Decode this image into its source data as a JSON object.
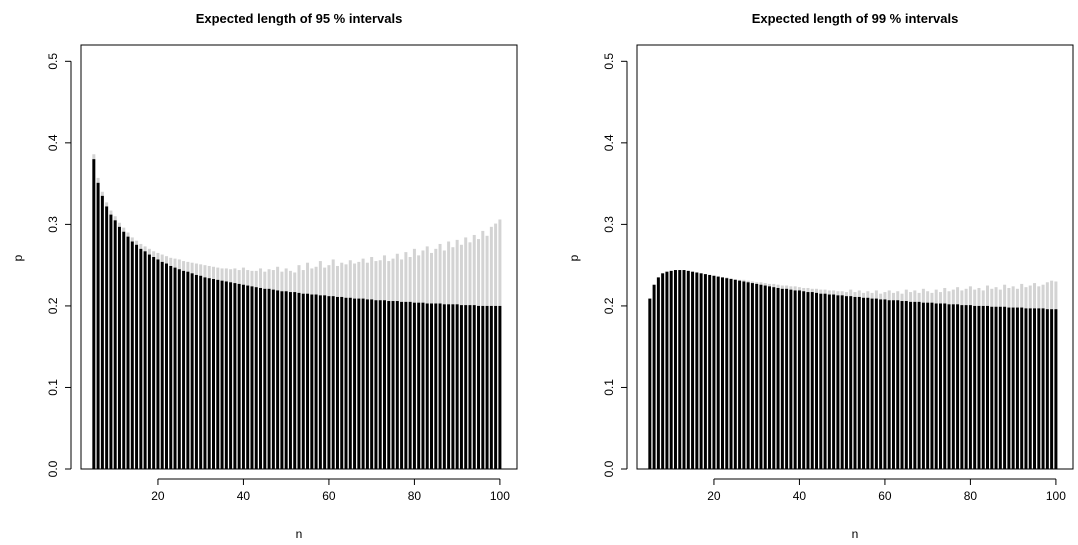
{
  "colors": {
    "bar": "#000000",
    "upper": "#d3d3d3"
  },
  "chart_data": [
    {
      "type": "bar",
      "title": "Expected length of 95 % intervals",
      "xlabel": "n",
      "ylabel": "p",
      "xlim": [
        2,
        104
      ],
      "ylim": [
        0,
        0.52
      ],
      "xticks": [
        20,
        40,
        60,
        80,
        100
      ],
      "yticks": [
        0.0,
        0.1,
        0.2,
        0.3,
        0.4,
        0.5
      ],
      "ytick_labels": [
        "0.0",
        "0.1",
        "0.2",
        "0.3",
        "0.4",
        "0.5"
      ],
      "grid": false,
      "series": [
        {
          "x": [
            5,
            6,
            7,
            8,
            9,
            10,
            11,
            12,
            13,
            14,
            15,
            16,
            17,
            18,
            19,
            20,
            21,
            22,
            23,
            24,
            25,
            26,
            27,
            28,
            29,
            30,
            31,
            32,
            33,
            34,
            35,
            36,
            37,
            38,
            39,
            40,
            41,
            42,
            43,
            44,
            45,
            46,
            47,
            48,
            49,
            50,
            51,
            52,
            53,
            54,
            55,
            56,
            57,
            58,
            59,
            60,
            61,
            62,
            63,
            64,
            65,
            66,
            67,
            68,
            69,
            70,
            71,
            72,
            73,
            74,
            75,
            76,
            77,
            78,
            79,
            80,
            81,
            82,
            83,
            84,
            85,
            86,
            87,
            88,
            89,
            90,
            91,
            92,
            93,
            94,
            95,
            96,
            97,
            98,
            99,
            100
          ],
          "lower": [
            0.38,
            0.351,
            0.335,
            0.322,
            0.312,
            0.305,
            0.297,
            0.291,
            0.285,
            0.279,
            0.275,
            0.27,
            0.267,
            0.263,
            0.26,
            0.257,
            0.254,
            0.252,
            0.249,
            0.247,
            0.245,
            0.243,
            0.242,
            0.24,
            0.238,
            0.237,
            0.235,
            0.234,
            0.233,
            0.232,
            0.231,
            0.23,
            0.229,
            0.228,
            0.227,
            0.226,
            0.225,
            0.224,
            0.223,
            0.222,
            0.221,
            0.221,
            0.22,
            0.219,
            0.218,
            0.218,
            0.217,
            0.217,
            0.216,
            0.215,
            0.215,
            0.214,
            0.214,
            0.213,
            0.213,
            0.212,
            0.212,
            0.211,
            0.211,
            0.21,
            0.21,
            0.209,
            0.209,
            0.209,
            0.208,
            0.208,
            0.207,
            0.207,
            0.207,
            0.206,
            0.206,
            0.206,
            0.205,
            0.205,
            0.205,
            0.204,
            0.204,
            0.204,
            0.203,
            0.203,
            0.203,
            0.203,
            0.202,
            0.202,
            0.202,
            0.202,
            0.201,
            0.201,
            0.201,
            0.201,
            0.2,
            0.2,
            0.2,
            0.2,
            0.2,
            0.2
          ],
          "upper": [
            0.386,
            0.357,
            0.34,
            0.327,
            0.317,
            0.31,
            0.302,
            0.296,
            0.29,
            0.284,
            0.28,
            0.276,
            0.273,
            0.27,
            0.267,
            0.265,
            0.263,
            0.261,
            0.259,
            0.258,
            0.257,
            0.255,
            0.254,
            0.253,
            0.252,
            0.251,
            0.25,
            0.249,
            0.248,
            0.247,
            0.246,
            0.246,
            0.245,
            0.246,
            0.244,
            0.247,
            0.244,
            0.243,
            0.243,
            0.246,
            0.242,
            0.245,
            0.244,
            0.248,
            0.242,
            0.246,
            0.243,
            0.241,
            0.25,
            0.244,
            0.253,
            0.246,
            0.248,
            0.255,
            0.247,
            0.25,
            0.257,
            0.249,
            0.253,
            0.251,
            0.256,
            0.252,
            0.254,
            0.258,
            0.253,
            0.26,
            0.255,
            0.256,
            0.262,
            0.255,
            0.258,
            0.264,
            0.257,
            0.266,
            0.26,
            0.27,
            0.262,
            0.268,
            0.273,
            0.265,
            0.27,
            0.276,
            0.268,
            0.279,
            0.272,
            0.281,
            0.275,
            0.284,
            0.278,
            0.287,
            0.282,
            0.292,
            0.286,
            0.297,
            0.301,
            0.306
          ]
        }
      ]
    },
    {
      "type": "bar",
      "title": "Expected length of 99 % intervals",
      "xlabel": "n",
      "ylabel": "p",
      "xlim": [
        2,
        104
      ],
      "ylim": [
        0,
        0.52
      ],
      "xticks": [
        20,
        40,
        60,
        80,
        100
      ],
      "yticks": [
        0.0,
        0.1,
        0.2,
        0.3,
        0.4,
        0.5
      ],
      "ytick_labels": [
        "0.0",
        "0.1",
        "0.2",
        "0.3",
        "0.4",
        "0.5"
      ],
      "grid": false,
      "series": [
        {
          "x": [
            5,
            6,
            7,
            8,
            9,
            10,
            11,
            12,
            13,
            14,
            15,
            16,
            17,
            18,
            19,
            20,
            21,
            22,
            23,
            24,
            25,
            26,
            27,
            28,
            29,
            30,
            31,
            32,
            33,
            34,
            35,
            36,
            37,
            38,
            39,
            40,
            41,
            42,
            43,
            44,
            45,
            46,
            47,
            48,
            49,
            50,
            51,
            52,
            53,
            54,
            55,
            56,
            57,
            58,
            59,
            60,
            61,
            62,
            63,
            64,
            65,
            66,
            67,
            68,
            69,
            70,
            71,
            72,
            73,
            74,
            75,
            76,
            77,
            78,
            79,
            80,
            81,
            82,
            83,
            84,
            85,
            86,
            87,
            88,
            89,
            90,
            91,
            92,
            93,
            94,
            95,
            96,
            97,
            98,
            99,
            100
          ],
          "lower": [
            0.209,
            0.226,
            0.235,
            0.24,
            0.242,
            0.243,
            0.244,
            0.244,
            0.244,
            0.243,
            0.242,
            0.241,
            0.24,
            0.239,
            0.238,
            0.237,
            0.236,
            0.235,
            0.234,
            0.233,
            0.232,
            0.231,
            0.23,
            0.229,
            0.228,
            0.227,
            0.226,
            0.225,
            0.224,
            0.223,
            0.222,
            0.221,
            0.221,
            0.22,
            0.219,
            0.219,
            0.218,
            0.217,
            0.217,
            0.216,
            0.215,
            0.215,
            0.214,
            0.214,
            0.213,
            0.213,
            0.212,
            0.212,
            0.211,
            0.211,
            0.21,
            0.21,
            0.209,
            0.209,
            0.208,
            0.208,
            0.207,
            0.207,
            0.207,
            0.206,
            0.206,
            0.205,
            0.205,
            0.205,
            0.204,
            0.204,
            0.204,
            0.203,
            0.203,
            0.203,
            0.202,
            0.202,
            0.202,
            0.201,
            0.201,
            0.201,
            0.2,
            0.2,
            0.2,
            0.2,
            0.199,
            0.199,
            0.199,
            0.199,
            0.198,
            0.198,
            0.198,
            0.198,
            0.197,
            0.197,
            0.197,
            0.197,
            0.197,
            0.196,
            0.196,
            0.196
          ],
          "upper": [
            0.209,
            0.226,
            0.235,
            0.24,
            0.242,
            0.243,
            0.244,
            0.244,
            0.244,
            0.243,
            0.242,
            0.241,
            0.24,
            0.239,
            0.238,
            0.237,
            0.236,
            0.235,
            0.235,
            0.234,
            0.233,
            0.232,
            0.232,
            0.231,
            0.23,
            0.229,
            0.229,
            0.228,
            0.227,
            0.227,
            0.226,
            0.225,
            0.225,
            0.224,
            0.224,
            0.223,
            0.222,
            0.222,
            0.221,
            0.221,
            0.22,
            0.22,
            0.219,
            0.219,
            0.218,
            0.218,
            0.217,
            0.22,
            0.217,
            0.219,
            0.216,
            0.218,
            0.216,
            0.219,
            0.215,
            0.217,
            0.219,
            0.216,
            0.218,
            0.215,
            0.22,
            0.217,
            0.219,
            0.216,
            0.221,
            0.218,
            0.216,
            0.22,
            0.217,
            0.222,
            0.218,
            0.22,
            0.223,
            0.219,
            0.221,
            0.224,
            0.22,
            0.222,
            0.219,
            0.225,
            0.221,
            0.223,
            0.22,
            0.226,
            0.222,
            0.224,
            0.221,
            0.227,
            0.223,
            0.225,
            0.228,
            0.224,
            0.226,
            0.229,
            0.231,
            0.23
          ]
        }
      ]
    }
  ]
}
